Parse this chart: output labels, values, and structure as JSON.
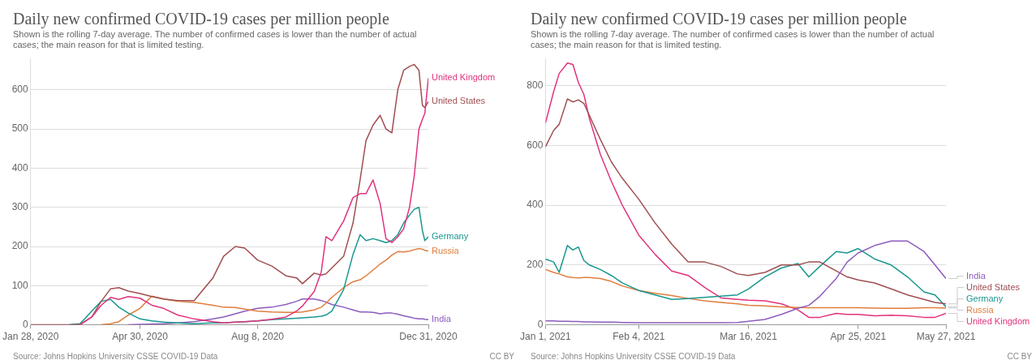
{
  "chart_data": [
    {
      "type": "line",
      "title": "Daily new confirmed COVID-19 cases per million people",
      "subtitle": "Shown is the rolling 7-day average. The number of confirmed cases is lower than the number of actual cases; the main reason for that is limited testing.",
      "x": [
        "2020-01-28",
        "2020-03-01",
        "2020-03-10",
        "2020-03-20",
        "2020-03-28",
        "2020-04-05",
        "2020-04-12",
        "2020-04-20",
        "2020-04-30",
        "2020-05-10",
        "2020-05-20",
        "2020-06-01",
        "2020-06-15",
        "2020-07-01",
        "2020-07-10",
        "2020-07-20",
        "2020-07-28",
        "2020-08-08",
        "2020-08-20",
        "2020-09-01",
        "2020-09-10",
        "2020-09-15",
        "2020-09-25",
        "2020-10-01",
        "2020-10-05",
        "2020-10-10",
        "2020-10-20",
        "2020-10-28",
        "2020-11-03",
        "2020-11-08",
        "2020-11-14",
        "2020-11-20",
        "2020-11-25",
        "2020-11-30",
        "2020-12-05",
        "2020-12-10",
        "2020-12-15",
        "2020-12-19",
        "2020-12-23",
        "2020-12-26",
        "2020-12-28",
        "2020-12-31"
      ],
      "series": [
        {
          "name": "United Kingdom",
          "color": "#e2337d",
          "values": [
            null,
            null,
            0,
            20,
            50,
            70,
            65,
            72,
            68,
            50,
            42,
            25,
            15,
            8,
            5,
            7,
            8,
            10,
            14,
            20,
            35,
            48,
            85,
            135,
            225,
            215,
            265,
            325,
            335,
            335,
            370,
            310,
            220,
            210,
            225,
            245,
            300,
            380,
            500,
            525,
            540,
            630
          ]
        },
        {
          "name": "United States",
          "color": "#a04f52",
          "values": [
            0,
            0,
            1,
            20,
            60,
            92,
            95,
            86,
            80,
            72,
            66,
            62,
            62,
            120,
            175,
            200,
            196,
            165,
            150,
            125,
            120,
            105,
            132,
            127,
            130,
            145,
            175,
            260,
            370,
            470,
            510,
            535,
            500,
            490,
            600,
            650,
            660,
            665,
            650,
            560,
            555,
            570
          ]
        },
        {
          "name": "Germany",
          "color": "#19978f",
          "values": [
            null,
            0,
            3,
            35,
            60,
            65,
            45,
            30,
            15,
            10,
            7,
            5,
            3,
            5,
            5,
            7,
            8,
            10,
            13,
            15,
            17,
            18,
            20,
            22,
            25,
            35,
            90,
            180,
            230,
            215,
            220,
            215,
            210,
            215,
            230,
            260,
            280,
            295,
            300,
            240,
            215,
            225
          ]
        },
        {
          "name": "Russia",
          "color": "#e07d3c",
          "values": [
            null,
            null,
            null,
            null,
            0,
            3,
            8,
            25,
            42,
            73,
            66,
            60,
            57,
            50,
            45,
            44,
            40,
            35,
            33,
            32,
            32,
            33,
            38,
            45,
            55,
            70,
            95,
            110,
            115,
            125,
            140,
            155,
            165,
            178,
            187,
            186,
            188,
            192,
            195,
            193,
            190,
            188
          ]
        },
        {
          "name": "India",
          "color": "#8d5cbc",
          "values": [
            null,
            null,
            null,
            null,
            null,
            null,
            null,
            0,
            1,
            2,
            3,
            5,
            8,
            15,
            20,
            28,
            35,
            42,
            45,
            52,
            60,
            66,
            66,
            62,
            58,
            52,
            45,
            38,
            33,
            33,
            32,
            28,
            30,
            30,
            27,
            23,
            20,
            17,
            15,
            15,
            14,
            13
          ]
        }
      ],
      "xlim": [
        "2020-01-28",
        "2020-12-31"
      ],
      "xticks": [
        {
          "value": "2020-01-28",
          "label": "Jan 28, 2020"
        },
        {
          "value": "2020-04-30",
          "label": "Apr 30, 2020"
        },
        {
          "value": "2020-08-08",
          "label": "Aug 8, 2020"
        },
        {
          "value": "2020-12-31",
          "label": "Dec 31, 2020"
        }
      ],
      "ylim": [
        0,
        680
      ],
      "yticks": [
        0,
        100,
        200,
        300,
        400,
        500,
        600
      ],
      "grid": "y",
      "marker": "none",
      "line_style": "solid",
      "annotations": [
        "Source: Johns Hopkins University CSSE COVID-19 Data",
        "CC BY"
      ]
    },
    {
      "type": "line",
      "title": "Daily new confirmed COVID-19 cases per million people",
      "subtitle": "Shown is the rolling 7-day average. The number of confirmed cases is lower than the number of actual cases; the main reason for that is limited testing.",
      "x": [
        "2021-01-01",
        "2021-01-04",
        "2021-01-06",
        "2021-01-09",
        "2021-01-11",
        "2021-01-13",
        "2021-01-15",
        "2021-01-17",
        "2021-01-21",
        "2021-01-25",
        "2021-01-29",
        "2021-02-04",
        "2021-02-10",
        "2021-02-16",
        "2021-02-22",
        "2021-02-28",
        "2021-03-06",
        "2021-03-12",
        "2021-03-16",
        "2021-03-22",
        "2021-03-28",
        "2021-04-03",
        "2021-04-07",
        "2021-04-11",
        "2021-04-17",
        "2021-04-21",
        "2021-04-25",
        "2021-05-01",
        "2021-05-07",
        "2021-05-13",
        "2021-05-19",
        "2021-05-23",
        "2021-05-27"
      ],
      "series": [
        {
          "name": "India",
          "color": "#8d5cbc",
          "values": [
            13,
            13,
            12,
            12,
            11,
            11,
            10,
            10,
            9,
            9,
            8,
            7,
            7,
            7,
            7,
            7,
            7,
            8,
            12,
            18,
            35,
            55,
            65,
            95,
            155,
            210,
            240,
            265,
            280,
            280,
            245,
            200,
            155
          ]
        },
        {
          "name": "United States",
          "color": "#a04f52",
          "values": [
            595,
            650,
            670,
            755,
            745,
            752,
            740,
            700,
            620,
            545,
            490,
            420,
            340,
            270,
            210,
            210,
            195,
            170,
            165,
            175,
            200,
            200,
            210,
            210,
            180,
            160,
            150,
            140,
            120,
            100,
            85,
            75,
            70
          ]
        },
        {
          "name": "Germany",
          "color": "#19978f",
          "values": [
            220,
            210,
            175,
            265,
            250,
            260,
            215,
            200,
            185,
            165,
            140,
            115,
            100,
            85,
            88,
            92,
            96,
            100,
            120,
            160,
            190,
            205,
            160,
            195,
            245,
            240,
            255,
            220,
            200,
            160,
            110,
            100,
            60
          ]
        },
        {
          "name": "Russia",
          "color": "#e07d3c",
          "values": [
            185,
            175,
            170,
            160,
            158,
            157,
            158,
            158,
            155,
            145,
            130,
            115,
            105,
            98,
            88,
            80,
            75,
            70,
            65,
            63,
            60,
            58,
            57,
            57,
            57,
            57,
            57,
            56,
            55,
            55,
            57,
            57,
            56
          ]
        },
        {
          "name": "United Kingdom",
          "color": "#e2337d",
          "values": [
            675,
            780,
            840,
            875,
            870,
            810,
            770,
            690,
            570,
            480,
            400,
            300,
            235,
            180,
            165,
            125,
            90,
            85,
            82,
            80,
            70,
            50,
            25,
            25,
            38,
            35,
            35,
            30,
            32,
            30,
            25,
            25,
            38
          ]
        }
      ],
      "xlim": [
        "2021-01-01",
        "2021-05-27"
      ],
      "xticks": [
        {
          "value": "2021-01-01",
          "label": "Jan 1, 2021"
        },
        {
          "value": "2021-02-04",
          "label": "Feb 4, 2021"
        },
        {
          "value": "2021-03-16",
          "label": "Mar 16, 2021"
        },
        {
          "value": "2021-04-25",
          "label": "Apr 25, 2021"
        },
        {
          "value": "2021-05-27",
          "label": "May 27, 2021"
        }
      ],
      "ylim": [
        0,
        890
      ],
      "yticks": [
        0,
        200,
        400,
        600,
        800
      ],
      "grid": "y",
      "marker": "none",
      "line_style": "solid",
      "annotations": [
        "Source: Johns Hopkins University CSSE COVID-19 Data",
        "CC BY"
      ]
    }
  ]
}
